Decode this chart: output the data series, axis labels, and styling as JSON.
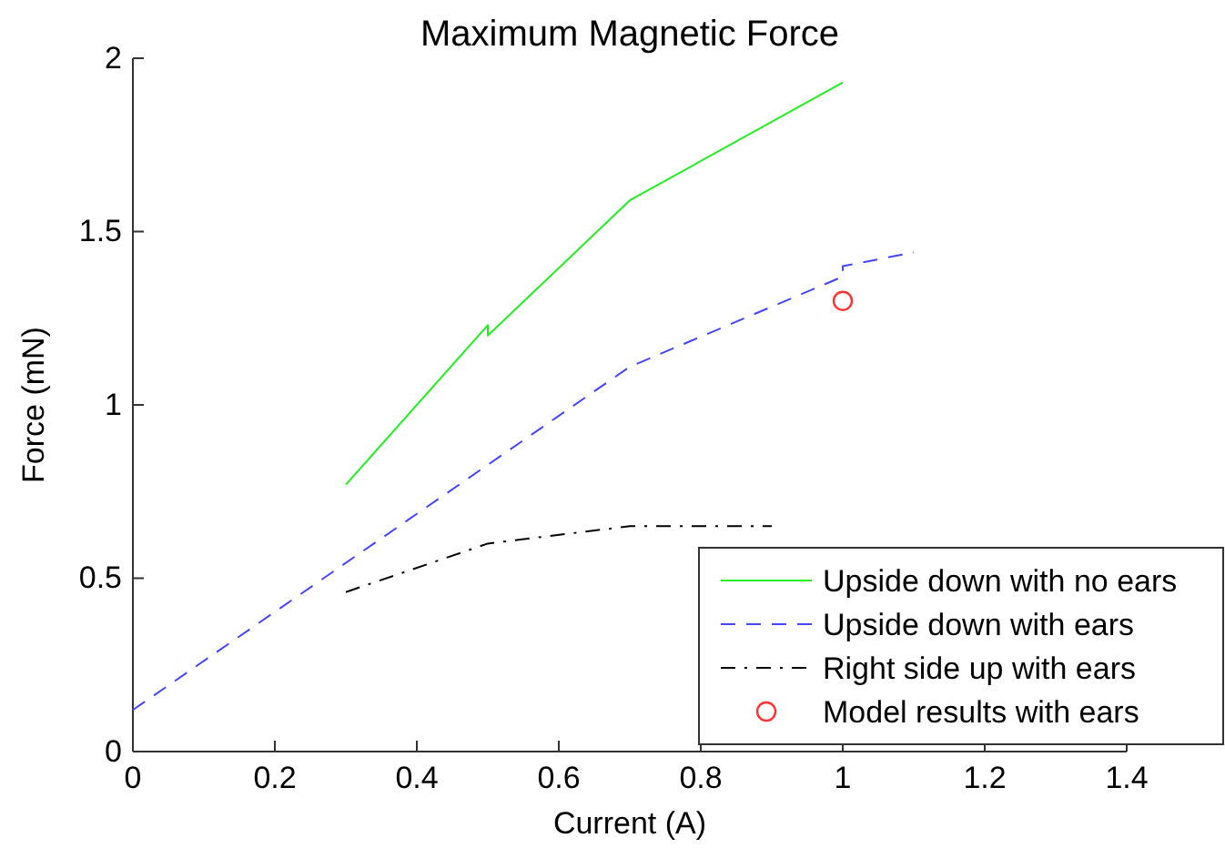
{
  "chart_data": {
    "type": "line",
    "title": "Maximum Magnetic Force",
    "xlabel": "Current (A)",
    "ylabel": "Force (mN)",
    "xlim": [
      0,
      1.4
    ],
    "xticks": [
      0,
      0.2,
      0.4,
      0.6,
      0.8,
      1,
      1.2,
      1.4
    ],
    "ylim": [
      0,
      2
    ],
    "yticks": [
      0,
      0.5,
      1,
      1.5,
      2
    ],
    "grid": false,
    "legend": "bottom right",
    "series": [
      {
        "name": "Upside down with no ears",
        "color": "#22ee22",
        "line_style": "solid",
        "x": [
          0.3,
          0.5,
          0.5,
          0.7,
          1.0
        ],
        "values": [
          0.77,
          1.23,
          1.2,
          1.59,
          1.93
        ]
      },
      {
        "name": "Upside down with ears",
        "color": "#4444ff",
        "line_style": "dashed",
        "x": [
          0,
          0.7,
          1.0,
          1.0,
          1.1
        ],
        "values": [
          0.12,
          1.11,
          1.37,
          1.4,
          1.44
        ]
      },
      {
        "name": "Right side up with ears",
        "color": "#000000",
        "line_style": "dashdot",
        "x": [
          0.3,
          0.5,
          0.7,
          0.9
        ],
        "values": [
          0.46,
          0.6,
          0.65,
          0.65
        ]
      },
      {
        "name": "Model results with ears",
        "type": "scatter",
        "marker": "circle",
        "color": "#ff3333",
        "x": [
          1.0
        ],
        "values": [
          1.3
        ]
      }
    ]
  }
}
